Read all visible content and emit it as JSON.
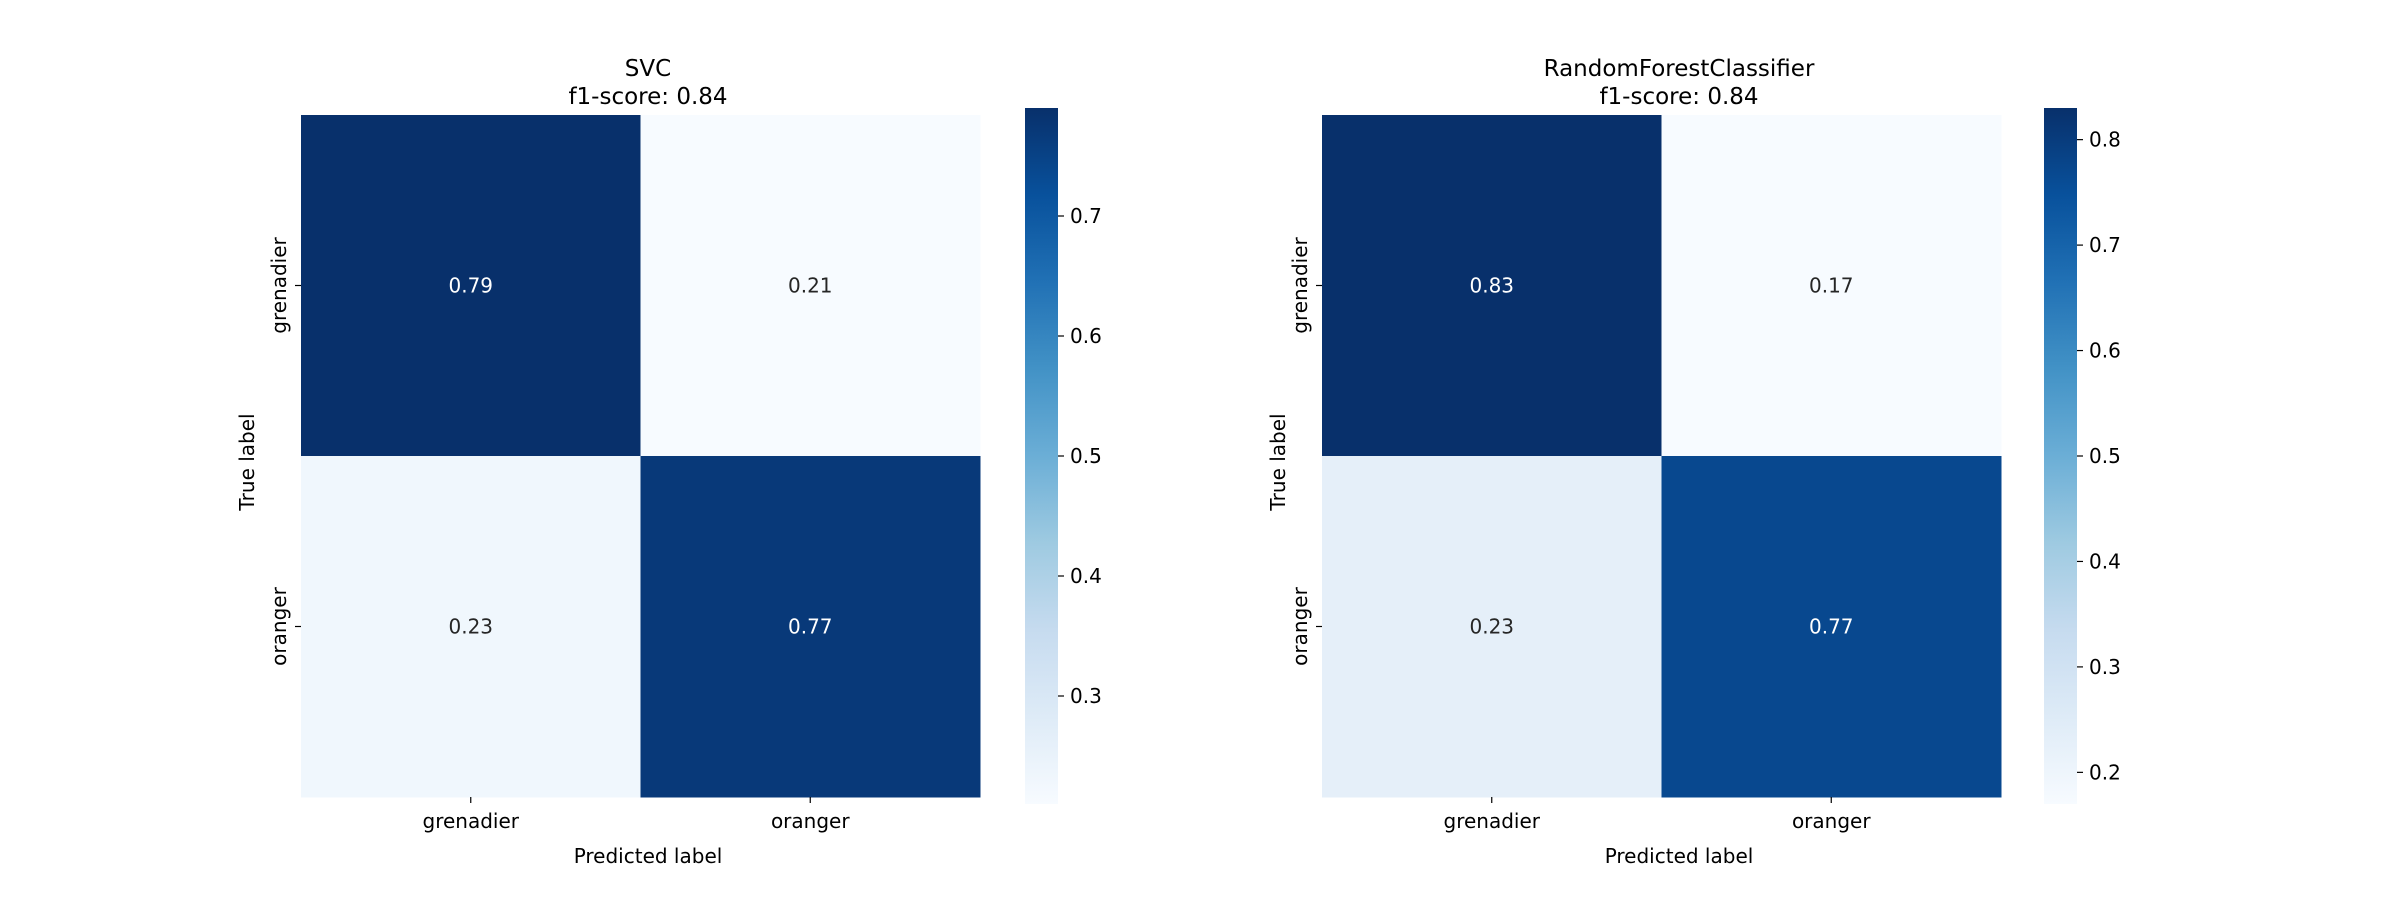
{
  "chart_data": [
    {
      "type": "heatmap",
      "title": "SVC",
      "subtitle": "f1-score: 0.84",
      "xlabel": "Predicted label",
      "ylabel": "True label",
      "x_categories": [
        "grenadier",
        "oranger"
      ],
      "y_categories": [
        "grenadier",
        "oranger"
      ],
      "values": [
        [
          0.79,
          0.21
        ],
        [
          0.23,
          0.77
        ]
      ],
      "colormap": "Blues",
      "colorbar": {
        "vmin": 0.21,
        "vmax": 0.79,
        "ticks": [
          0.3,
          0.4,
          0.5,
          0.6,
          0.7
        ]
      },
      "grid": false
    },
    {
      "type": "heatmap",
      "title": "RandomForestClassifier",
      "subtitle": "f1-score: 0.84",
      "xlabel": "Predicted label",
      "ylabel": "True label",
      "x_categories": [
        "grenadier",
        "oranger"
      ],
      "y_categories": [
        "grenadier",
        "oranger"
      ],
      "values": [
        [
          0.83,
          0.17
        ],
        [
          0.23,
          0.77
        ]
      ],
      "colormap": "Blues",
      "colorbar": {
        "vmin": 0.17,
        "vmax": 0.83,
        "ticks": [
          0.2,
          0.3,
          0.4,
          0.5,
          0.6,
          0.7,
          0.8
        ]
      },
      "grid": false
    }
  ],
  "colors": {
    "cmap_low": "#f7fbff",
    "cmap_high": "#08306b"
  }
}
